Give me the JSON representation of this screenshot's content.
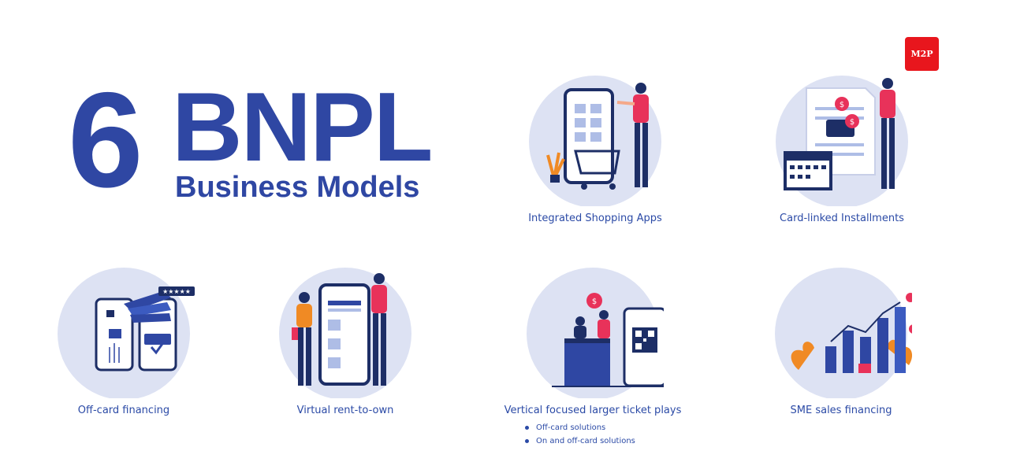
{
  "title": {
    "number": "6",
    "main": "BNPL",
    "subtitle": "Business Models"
  },
  "logo": {
    "text": "M2P",
    "color": "#e8161d"
  },
  "colors": {
    "primary": "#2f47a3",
    "circle_bg": "#dde2f3",
    "accent_red": "#e8325a",
    "navy": "#1d2e66"
  },
  "models": [
    {
      "label": "Integrated Shopping Apps",
      "icon": "shopping-app-illustration"
    },
    {
      "label": "Card-linked Installments",
      "icon": "card-installments-illustration"
    },
    {
      "label": "Off-card financing",
      "icon": "off-card-financing-illustration"
    },
    {
      "label": "Virtual rent-to-own",
      "icon": "rent-to-own-illustration"
    },
    {
      "label": "Vertical focused larger ticket plays",
      "icon": "larger-ticket-illustration",
      "bullets": [
        "Off-card solutions",
        "On and off-card solutions"
      ]
    },
    {
      "label": "SME sales financing",
      "icon": "sme-financing-illustration"
    }
  ]
}
